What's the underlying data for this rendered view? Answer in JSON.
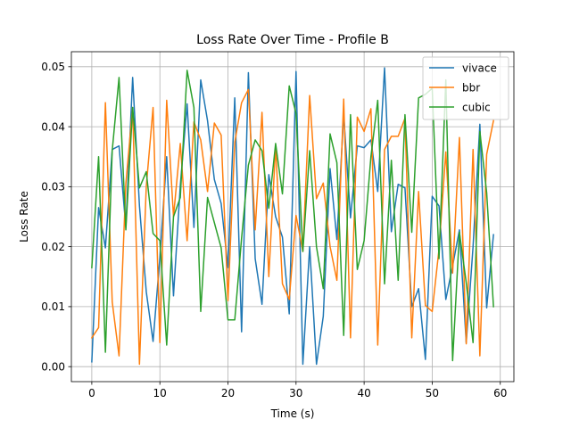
{
  "chart_data": {
    "type": "line",
    "title": "Loss Rate Over Time - Profile B",
    "xlabel": "Time (s)",
    "ylabel": "Loss Rate",
    "xlim": [
      -3,
      62
    ],
    "ylim": [
      -0.0025,
      0.0525
    ],
    "xticks": [
      0,
      10,
      20,
      30,
      40,
      50,
      60
    ],
    "yticks": [
      0.0,
      0.01,
      0.02,
      0.03,
      0.04,
      0.05
    ],
    "xtick_labels": [
      "0",
      "10",
      "20",
      "30",
      "40",
      "50",
      "60"
    ],
    "ytick_labels": [
      "0.00",
      "0.01",
      "0.02",
      "0.03",
      "0.04",
      "0.05"
    ],
    "grid": true,
    "legend_position": "top-right",
    "x": [
      0,
      1,
      2,
      3,
      4,
      5,
      6,
      7,
      8,
      9,
      10,
      11,
      12,
      13,
      14,
      15,
      16,
      17,
      18,
      19,
      20,
      21,
      22,
      23,
      24,
      25,
      26,
      27,
      28,
      29,
      30,
      31,
      32,
      33,
      34,
      35,
      36,
      37,
      38,
      39,
      40,
      41,
      42,
      43,
      44,
      45,
      46,
      47,
      48,
      49,
      50,
      51,
      52,
      53,
      54,
      55,
      56,
      57,
      58,
      59
    ],
    "series": [
      {
        "name": "vivace",
        "color": "#1f77b4",
        "values": [
          0.0008,
          0.0265,
          0.0198,
          0.0362,
          0.0368,
          0.0232,
          0.0482,
          0.0268,
          0.0125,
          0.0042,
          0.0182,
          0.035,
          0.0118,
          0.0302,
          0.0438,
          0.0232,
          0.0478,
          0.041,
          0.0312,
          0.0272,
          0.0165,
          0.0448,
          0.0058,
          0.049,
          0.018,
          0.0104,
          0.032,
          0.025,
          0.0216,
          0.0088,
          0.0492,
          0.0004,
          0.02,
          0.0004,
          0.0084,
          0.033,
          0.0212,
          0.042,
          0.0248,
          0.0368,
          0.0365,
          0.0378,
          0.0292,
          0.0498,
          0.0225,
          0.0304,
          0.0298,
          0.01,
          0.013,
          0.0012,
          0.0284,
          0.0268,
          0.0112,
          0.0168,
          0.0228,
          0.004,
          0.02,
          0.0404,
          0.0098,
          0.022
        ]
      },
      {
        "name": "bbr",
        "color": "#ff7f0e",
        "values": [
          0.0048,
          0.0065,
          0.044,
          0.0108,
          0.0018,
          0.0305,
          0.0432,
          0.0004,
          0.03,
          0.0432,
          0.004,
          0.0444,
          0.025,
          0.0372,
          0.021,
          0.0408,
          0.0378,
          0.0292,
          0.0406,
          0.0386,
          0.011,
          0.0374,
          0.044,
          0.0462,
          0.0228,
          0.0424,
          0.015,
          0.0368,
          0.0138,
          0.0112,
          0.0252,
          0.0192,
          0.0452,
          0.028,
          0.0306,
          0.02,
          0.0144,
          0.0446,
          0.0048,
          0.0416,
          0.0392,
          0.043,
          0.0036,
          0.0362,
          0.0384,
          0.0384,
          0.0414,
          0.0048,
          0.0292,
          0.0102,
          0.0092,
          0.0196,
          0.0358,
          0.0156,
          0.0382,
          0.0038,
          0.0362,
          0.0018,
          0.0354,
          0.041
        ]
      },
      {
        "name": "cubic",
        "color": "#2ca02c",
        "values": [
          0.0165,
          0.035,
          0.0024,
          0.036,
          0.0482,
          0.0228,
          0.0432,
          0.0298,
          0.0325,
          0.0222,
          0.021,
          0.0036,
          0.025,
          0.0282,
          0.0494,
          0.0432,
          0.0092,
          0.0282,
          0.024,
          0.0198,
          0.0078,
          0.0078,
          0.0214,
          0.0336,
          0.0378,
          0.036,
          0.0264,
          0.0372,
          0.0288,
          0.0468,
          0.0422,
          0.0192,
          0.036,
          0.02,
          0.013,
          0.0388,
          0.034,
          0.0052,
          0.042,
          0.0162,
          0.021,
          0.035,
          0.0444,
          0.0138,
          0.0344,
          0.0144,
          0.042,
          0.0224,
          0.0448,
          0.0454,
          0.0464,
          0.018,
          0.0478,
          0.001,
          0.0224,
          0.014,
          0.004,
          0.0392,
          0.029,
          0.01
        ]
      }
    ]
  }
}
